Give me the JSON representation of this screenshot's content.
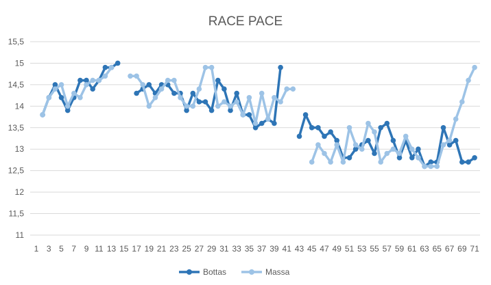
{
  "chart_data": {
    "type": "line",
    "title": "RACE PACE",
    "xlabel": "",
    "ylabel": "",
    "ylim": [
      11,
      15.5
    ],
    "y_ticks": [
      "11",
      "11,5",
      "12",
      "12,5",
      "13",
      "13,5",
      "14",
      "14,5",
      "15",
      "15,5"
    ],
    "x_range": [
      1,
      71
    ],
    "x_tick_labels": [
      1,
      3,
      5,
      7,
      9,
      11,
      13,
      15,
      17,
      19,
      21,
      23,
      25,
      27,
      29,
      31,
      33,
      35,
      37,
      39,
      41,
      43,
      45,
      47,
      49,
      51,
      53,
      55,
      57,
      59,
      61,
      63,
      65,
      67,
      69,
      71
    ],
    "grid": "horizontal",
    "legend_position": "bottom",
    "series": [
      {
        "name": "Bottas",
        "color": "#2e75b6",
        "points": [
          [
            2,
            13.8
          ],
          [
            3,
            14.2
          ],
          [
            4,
            14.5
          ],
          [
            5,
            14.2
          ],
          [
            6,
            13.9
          ],
          [
            7,
            14.2
          ],
          [
            8,
            14.6
          ],
          [
            9,
            14.6
          ],
          [
            10,
            14.4
          ],
          [
            11,
            14.6
          ],
          [
            12,
            14.9
          ],
          [
            13,
            14.9
          ],
          [
            14,
            15.0
          ],
          null,
          [
            17,
            14.3
          ],
          [
            18,
            14.4
          ],
          [
            19,
            14.5
          ],
          [
            20,
            14.3
          ],
          [
            21,
            14.5
          ],
          [
            22,
            14.5
          ],
          [
            23,
            14.3
          ],
          [
            24,
            14.3
          ],
          [
            25,
            13.9
          ],
          [
            26,
            14.3
          ],
          [
            27,
            14.1
          ],
          [
            28,
            14.1
          ],
          [
            29,
            13.9
          ],
          [
            30,
            14.6
          ],
          [
            31,
            14.4
          ],
          [
            32,
            13.9
          ],
          [
            33,
            14.3
          ],
          [
            34,
            13.8
          ],
          [
            35,
            13.8
          ],
          [
            36,
            13.5
          ],
          [
            37,
            13.6
          ],
          [
            38,
            13.7
          ],
          [
            39,
            13.6
          ],
          [
            40,
            14.9
          ],
          null,
          [
            43,
            13.3
          ],
          [
            44,
            13.8
          ],
          [
            45,
            13.5
          ],
          [
            46,
            13.5
          ],
          [
            47,
            13.3
          ],
          [
            48,
            13.4
          ],
          [
            49,
            13.2
          ],
          [
            50,
            12.8
          ],
          [
            51,
            12.8
          ],
          [
            52,
            13.0
          ],
          [
            53,
            13.1
          ],
          [
            54,
            13.2
          ],
          [
            55,
            12.9
          ],
          [
            56,
            13.5
          ],
          [
            57,
            13.6
          ],
          [
            58,
            13.2
          ],
          [
            59,
            12.8
          ],
          [
            60,
            13.2
          ],
          [
            61,
            12.8
          ],
          [
            62,
            13.0
          ],
          [
            63,
            12.6
          ],
          [
            64,
            12.7
          ],
          [
            65,
            12.7
          ],
          [
            66,
            13.5
          ],
          [
            67,
            13.1
          ],
          [
            68,
            13.2
          ],
          [
            69,
            12.7
          ],
          [
            70,
            12.7
          ],
          [
            71,
            12.8
          ]
        ]
      },
      {
        "name": "Massa",
        "color": "#9dc3e6",
        "points": [
          [
            2,
            13.8
          ],
          [
            3,
            14.2
          ],
          [
            4,
            14.4
          ],
          [
            5,
            14.5
          ],
          [
            6,
            14.0
          ],
          [
            7,
            14.3
          ],
          [
            8,
            14.2
          ],
          [
            9,
            14.5
          ],
          [
            10,
            14.6
          ],
          [
            11,
            14.6
          ],
          [
            12,
            14.7
          ],
          [
            13,
            14.9
          ],
          null,
          [
            16,
            14.7
          ],
          [
            17,
            14.7
          ],
          [
            18,
            14.5
          ],
          [
            19,
            14.0
          ],
          [
            20,
            14.2
          ],
          [
            21,
            14.4
          ],
          [
            22,
            14.6
          ],
          [
            23,
            14.6
          ],
          [
            24,
            14.2
          ],
          [
            25,
            14.0
          ],
          [
            26,
            14.0
          ],
          [
            27,
            14.4
          ],
          [
            28,
            14.9
          ],
          [
            29,
            14.9
          ],
          [
            30,
            14.0
          ],
          [
            31,
            14.1
          ],
          [
            32,
            14.0
          ],
          [
            33,
            14.1
          ],
          [
            34,
            13.8
          ],
          [
            35,
            14.2
          ],
          [
            36,
            13.6
          ],
          [
            37,
            14.3
          ],
          [
            38,
            13.7
          ],
          [
            39,
            14.2
          ],
          [
            40,
            14.1
          ],
          [
            41,
            14.4
          ],
          [
            42,
            14.4
          ],
          null,
          [
            45,
            12.7
          ],
          [
            46,
            13.1
          ],
          [
            47,
            12.9
          ],
          [
            48,
            12.7
          ],
          [
            49,
            13.1
          ],
          [
            50,
            12.7
          ],
          [
            51,
            13.5
          ],
          [
            52,
            13.1
          ],
          [
            53,
            13.0
          ],
          [
            54,
            13.6
          ],
          [
            55,
            13.4
          ],
          [
            56,
            12.7
          ],
          [
            57,
            12.9
          ],
          [
            58,
            13.0
          ],
          [
            59,
            12.9
          ],
          [
            60,
            13.3
          ],
          [
            61,
            13.0
          ],
          [
            62,
            12.8
          ],
          [
            63,
            12.6
          ],
          [
            64,
            12.6
          ],
          [
            65,
            12.6
          ],
          [
            66,
            13.1
          ],
          [
            67,
            13.2
          ],
          [
            68,
            13.7
          ],
          [
            69,
            14.1
          ],
          [
            70,
            14.6
          ],
          [
            71,
            14.9
          ]
        ]
      }
    ]
  }
}
